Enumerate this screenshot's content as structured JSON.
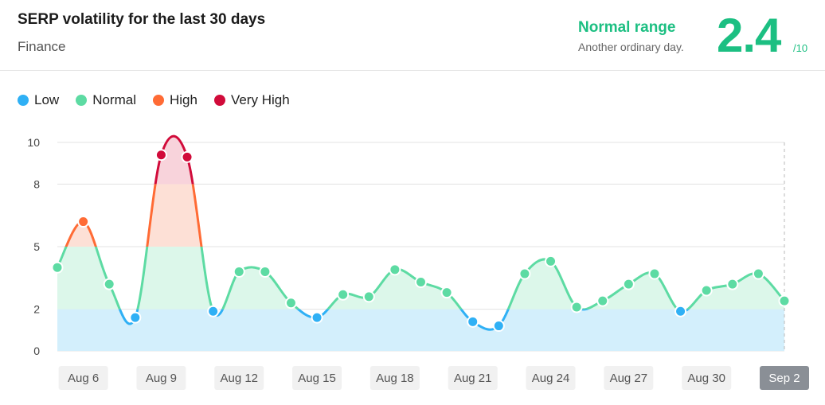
{
  "header": {
    "title": "SERP volatility for the last 30 days",
    "subtitle": "Finance",
    "range_label": "Normal range",
    "range_desc": "Another ordinary day.",
    "score": "2.4",
    "score_max": "/10"
  },
  "legend": [
    {
      "label": "Low",
      "color": "#2fb0f5"
    },
    {
      "label": "Normal",
      "color": "#5ddba3"
    },
    {
      "label": "High",
      "color": "#ff6b35"
    },
    {
      "label": "Very High",
      "color": "#d10b3a"
    }
  ],
  "colors": {
    "low_fill": "#d3effc",
    "normal_fill": "#dcf7ea",
    "high_fill": "#fde0d6",
    "veryhigh_fill": "#f8d3db",
    "gridline": "#e3e3e3",
    "accent": "#1cbf82",
    "selected_tick_bg": "#8a8f96"
  },
  "chart_data": {
    "type": "area",
    "ylim": [
      0,
      10
    ],
    "yticks": [
      "0",
      "2",
      "5",
      "8",
      "10"
    ],
    "ytick_values": [
      0,
      2,
      5,
      8,
      10
    ],
    "xticks": [
      "Aug 6",
      "Aug 9",
      "Aug 12",
      "Aug 15",
      "Aug 18",
      "Aug 21",
      "Aug 24",
      "Aug 27",
      "Aug 30",
      "Sep 2"
    ],
    "xtick_index": [
      1,
      4,
      7,
      10,
      13,
      16,
      19,
      22,
      25,
      28
    ],
    "selected_xtick": "Sep 2",
    "x": [
      "Aug 5",
      "Aug 6",
      "Aug 7",
      "Aug 8",
      "Aug 9",
      "Aug 10",
      "Aug 11",
      "Aug 12",
      "Aug 13",
      "Aug 14",
      "Aug 15",
      "Aug 16",
      "Aug 17",
      "Aug 18",
      "Aug 19",
      "Aug 20",
      "Aug 21",
      "Aug 22",
      "Aug 23",
      "Aug 24",
      "Aug 25",
      "Aug 26",
      "Aug 27",
      "Aug 28",
      "Aug 29",
      "Aug 30",
      "Aug 31",
      "Sep 1",
      "Sep 2"
    ],
    "values": [
      4.0,
      6.2,
      3.2,
      1.6,
      9.4,
      9.3,
      1.9,
      3.8,
      3.8,
      2.3,
      1.6,
      2.7,
      2.6,
      3.9,
      3.3,
      2.8,
      1.4,
      1.2,
      3.7,
      4.3,
      2.1,
      2.4,
      3.2,
      3.7,
      1.9,
      2.9,
      3.2,
      3.7,
      2.4
    ],
    "bands": [
      {
        "name": "Low",
        "from": 0,
        "to": 2
      },
      {
        "name": "Normal",
        "from": 2,
        "to": 5
      },
      {
        "name": "High",
        "from": 5,
        "to": 8
      },
      {
        "name": "Very High",
        "from": 8,
        "to": 10
      }
    ]
  }
}
